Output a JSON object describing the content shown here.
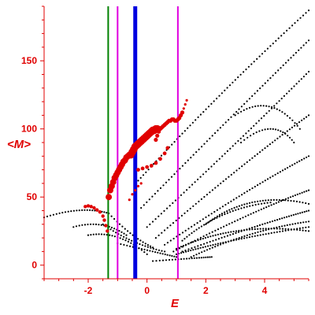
{
  "chart_data": {
    "type": "scatter",
    "title": "",
    "xlabel": "E",
    "ylabel": "<M>",
    "xlim": [
      -3.5,
      5.5
    ],
    "ylim": [
      -10,
      190
    ],
    "xticks": [
      -2,
      0,
      2,
      4
    ],
    "xtick_labels": [
      "-2",
      "0",
      "2",
      "4"
    ],
    "yticks": [
      0,
      50,
      100,
      150
    ],
    "ytick_labels": [
      "0",
      "50",
      "100",
      "150"
    ],
    "grid": false,
    "legend": "none",
    "colors": {
      "axes": "#e00000",
      "background_points": "#000000",
      "highlight_points": "#e00000",
      "line_green": "#008000",
      "line_magenta": "#e000e0",
      "line_blue": "#0000e0"
    },
    "vertical_lines": [
      {
        "x": -1.32,
        "color": "#008000",
        "width": 2
      },
      {
        "x": -1.0,
        "color": "#e000e0",
        "width": 2
      },
      {
        "x": -0.4,
        "color": "#0000e0",
        "width": 5
      },
      {
        "x": 1.05,
        "color": "#e000e0",
        "width": 2
      }
    ],
    "background_bands": [
      {
        "from": [
          -3.5,
          35
        ],
        "ctrl": [
          -2.2,
          44
        ],
        "to": [
          -1.3,
          38
        ],
        "step": 0.09
      },
      {
        "from": [
          -1.3,
          38
        ],
        "ctrl": [
          -0.5,
          20
        ],
        "to": [
          0.2,
          13
        ],
        "step": 0.09
      },
      {
        "from": [
          -1.5,
          30
        ],
        "ctrl": [
          -0.5,
          15
        ],
        "to": [
          0.6,
          10
        ],
        "step": 0.09
      },
      {
        "from": [
          -2.5,
          28
        ],
        "ctrl": [
          -1.5,
          34
        ],
        "to": [
          -0.7,
          22
        ],
        "step": 0.09
      },
      {
        "from": [
          -2.0,
          22
        ],
        "ctrl": [
          -1.0,
          26
        ],
        "to": [
          0.0,
          8
        ],
        "step": 0.09
      },
      {
        "from": [
          -1.0,
          16
        ],
        "ctrl": [
          0.2,
          10
        ],
        "to": [
          1.0,
          6
        ],
        "step": 0.09
      },
      {
        "from": [
          0.2,
          3
        ],
        "ctrl": [
          1.5,
          5
        ],
        "to": [
          2.2,
          6
        ],
        "step": 0.09
      },
      {
        "from": [
          -0.3,
          62
        ],
        "ctrl": [
          2.5,
          128
        ],
        "to": [
          5.5,
          187
        ],
        "step": 0.09
      },
      {
        "from": [
          -0.2,
          42
        ],
        "ctrl": [
          2.8,
          108
        ],
        "to": [
          5.5,
          165
        ],
        "step": 0.09
      },
      {
        "from": [
          0.0,
          28
        ],
        "ctrl": [
          3.0,
          88
        ],
        "to": [
          5.5,
          142
        ],
        "step": 0.09
      },
      {
        "from": [
          0.3,
          20
        ],
        "ctrl": [
          3.2,
          74
        ],
        "to": [
          5.5,
          110
        ],
        "step": 0.09
      },
      {
        "from": [
          0.6,
          15
        ],
        "ctrl": [
          3.4,
          56
        ],
        "to": [
          5.5,
          80
        ],
        "step": 0.09
      },
      {
        "from": [
          0.9,
          10
        ],
        "ctrl": [
          3.6,
          40
        ],
        "to": [
          5.5,
          55
        ],
        "step": 0.09
      },
      {
        "from": [
          1.2,
          10
        ],
        "ctrl": [
          3.8,
          30
        ],
        "to": [
          5.5,
          40
        ],
        "step": 0.09
      },
      {
        "from": [
          1.0,
          8
        ],
        "ctrl": [
          3.0,
          20
        ],
        "to": [
          5.5,
          28
        ],
        "step": 0.09
      },
      {
        "from": [
          1.0,
          12
        ],
        "ctrl": [
          3.0,
          32
        ],
        "to": [
          5.5,
          25
        ],
        "step": 0.09
      },
      {
        "from": [
          1.5,
          6
        ],
        "ctrl": [
          3.5,
          26
        ],
        "to": [
          5.5,
          32
        ],
        "step": 0.09
      },
      {
        "from": [
          1.2,
          18
        ],
        "ctrl": [
          2.5,
          42
        ],
        "to": [
          4.2,
          46
        ],
        "step": 0.09
      },
      {
        "from": [
          2.0,
          30
        ],
        "ctrl": [
          3.5,
          55
        ],
        "to": [
          5.5,
          45
        ],
        "step": 0.09
      },
      {
        "from": [
          3.0,
          110
        ],
        "ctrl": [
          4.2,
          128
        ],
        "to": [
          5.2,
          100
        ],
        "step": 0.09
      },
      {
        "from": [
          3.2,
          90
        ],
        "ctrl": [
          4.3,
          110
        ],
        "to": [
          5.0,
          90
        ],
        "step": 0.09
      }
    ],
    "highlight_series": [
      {
        "x": [
          -2.1,
          -2.0,
          -1.9,
          -1.8,
          -1.7,
          -1.6,
          -1.5,
          -1.45,
          -1.4,
          -1.35
        ],
        "y": [
          43,
          43.5,
          43,
          42,
          40.5,
          39,
          36,
          33,
          29,
          25
        ],
        "size": 2.2
      },
      {
        "x": [
          -1.3,
          -1.25,
          -1.2,
          -1.15,
          -1.1,
          -1.05,
          -1.0,
          -0.95,
          -0.9,
          -0.85,
          -0.8,
          -0.75,
          -0.7,
          -0.65,
          -0.6
        ],
        "y": [
          50,
          55,
          58,
          61,
          64,
          66,
          68,
          70,
          72,
          74,
          76,
          77,
          79,
          80,
          81
        ],
        "size": 4.0
      },
      {
        "x": [
          -0.55,
          -0.5,
          -0.45,
          -0.4,
          -0.35,
          -0.3,
          -0.25,
          -0.2,
          -0.15,
          -0.1,
          -0.05,
          0.0,
          0.05,
          0.1,
          0.15,
          0.2,
          0.25,
          0.3,
          0.35
        ],
        "y": [
          81,
          83,
          85,
          87,
          88,
          89,
          90,
          91,
          92,
          93,
          94,
          95,
          96,
          97,
          98,
          99,
          99,
          100,
          100
        ],
        "size": 4.8
      },
      {
        "x": [
          -0.3,
          -0.15,
          0.0,
          0.15,
          0.3,
          0.45,
          0.6,
          0.7
        ],
        "y": [
          70,
          71,
          72,
          73,
          75,
          78,
          82,
          86
        ],
        "size": 2.4
      },
      {
        "x": [
          0.3,
          0.35,
          0.4,
          0.45,
          0.5,
          0.55,
          0.6,
          0.65,
          0.7,
          0.75,
          0.8,
          0.85,
          0.9,
          0.95,
          1.0,
          1.05,
          1.1,
          1.15,
          1.2
        ],
        "y": [
          92,
          95,
          98,
          100,
          101,
          102,
          103,
          104,
          105,
          106,
          106,
          107,
          107,
          106,
          106,
          107,
          108,
          110,
          112
        ],
        "size": 2.6
      },
      {
        "x": [
          -0.6,
          -0.5,
          -0.4,
          -0.3,
          -0.2
        ],
        "y": [
          48,
          52,
          55,
          58,
          60
        ],
        "size": 1.6
      },
      {
        "x": [
          1.2,
          1.25,
          1.3,
          1.35
        ],
        "y": [
          112,
          115,
          118,
          121
        ],
        "size": 1.6
      }
    ]
  }
}
